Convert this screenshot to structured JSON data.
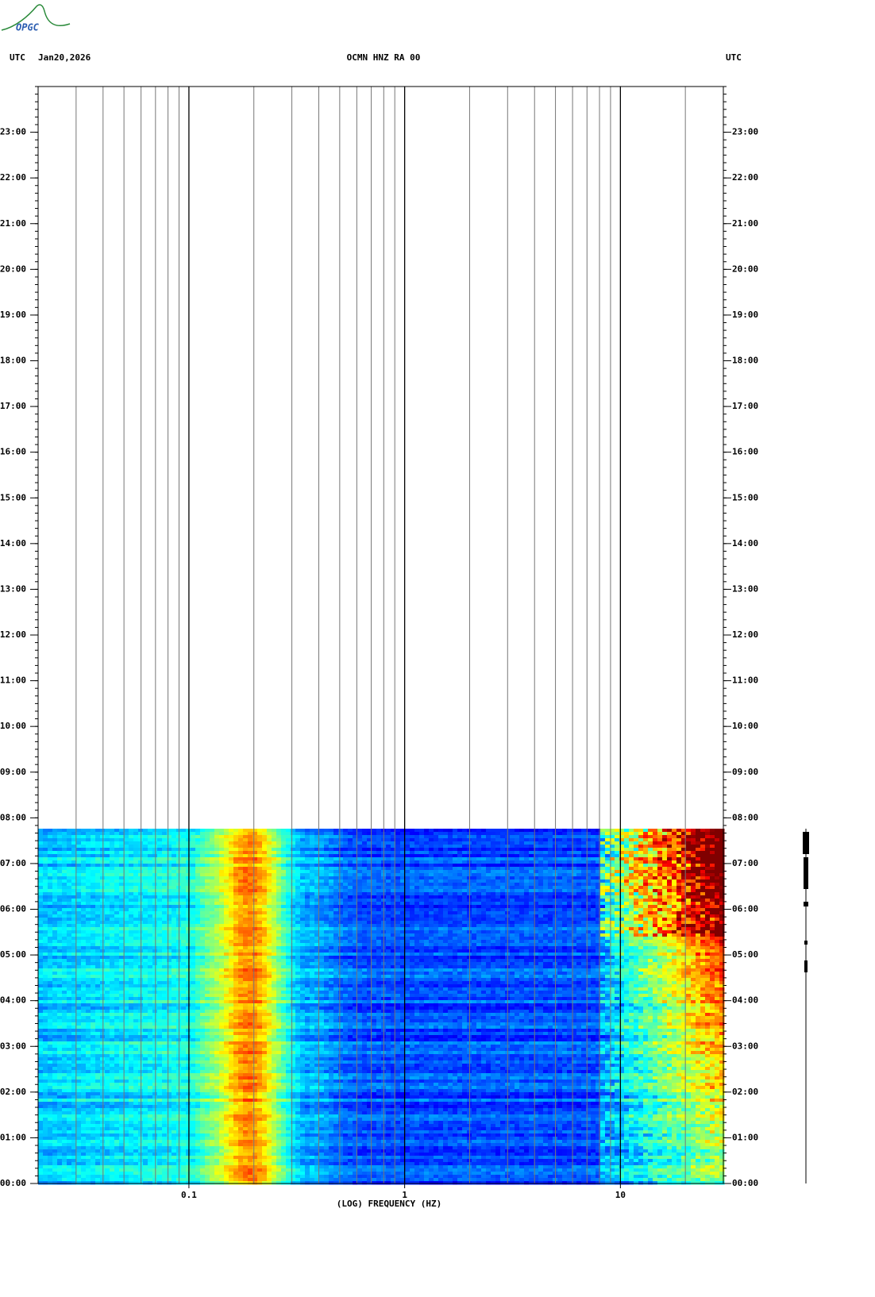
{
  "logo": "OPGC",
  "chart_data": {
    "type": "spectrogram",
    "header_left": "UTC",
    "date": "Jan20,2026",
    "title": "OCMN HNZ RA 00",
    "header_right": "UTC",
    "xlabel": "(LOG) FREQUENCY (HZ)",
    "xscale": "log",
    "xlim": [
      0.02,
      30
    ],
    "xticks": [
      0.1,
      1,
      10
    ],
    "xminor": [
      0.03,
      0.04,
      0.05,
      0.06,
      0.07,
      0.08,
      0.09,
      0.2,
      0.3,
      0.4,
      0.5,
      0.6,
      0.7,
      0.8,
      0.9,
      2,
      3,
      4,
      5,
      6,
      7,
      8,
      9,
      20
    ],
    "ylim": [
      0,
      24
    ],
    "yticks": [
      {
        "value": 0,
        "label": "00:00"
      },
      {
        "value": 1,
        "label": "01:00"
      },
      {
        "value": 2,
        "label": "02:00"
      },
      {
        "value": 3,
        "label": "03:00"
      },
      {
        "value": 4,
        "label": "04:00"
      },
      {
        "value": 5,
        "label": "05:00"
      },
      {
        "value": 6,
        "label": "06:00"
      },
      {
        "value": 7,
        "label": "07:00"
      },
      {
        "value": 8,
        "label": "08:00"
      },
      {
        "value": 9,
        "label": "09:00"
      },
      {
        "value": 10,
        "label": "10:00"
      },
      {
        "value": 11,
        "label": "11:00"
      },
      {
        "value": 12,
        "label": "12:00"
      },
      {
        "value": 13,
        "label": "13:00"
      },
      {
        "value": 14,
        "label": "14:00"
      },
      {
        "value": 15,
        "label": "15:00"
      },
      {
        "value": 16,
        "label": "16:00"
      },
      {
        "value": 17,
        "label": "17:00"
      },
      {
        "value": 18,
        "label": "18:00"
      },
      {
        "value": 19,
        "label": "19:00"
      },
      {
        "value": 20,
        "label": "20:00"
      },
      {
        "value": 21,
        "label": "21:00"
      },
      {
        "value": 22,
        "label": "22:00"
      },
      {
        "value": 23,
        "label": "23:00"
      }
    ]
  }
}
